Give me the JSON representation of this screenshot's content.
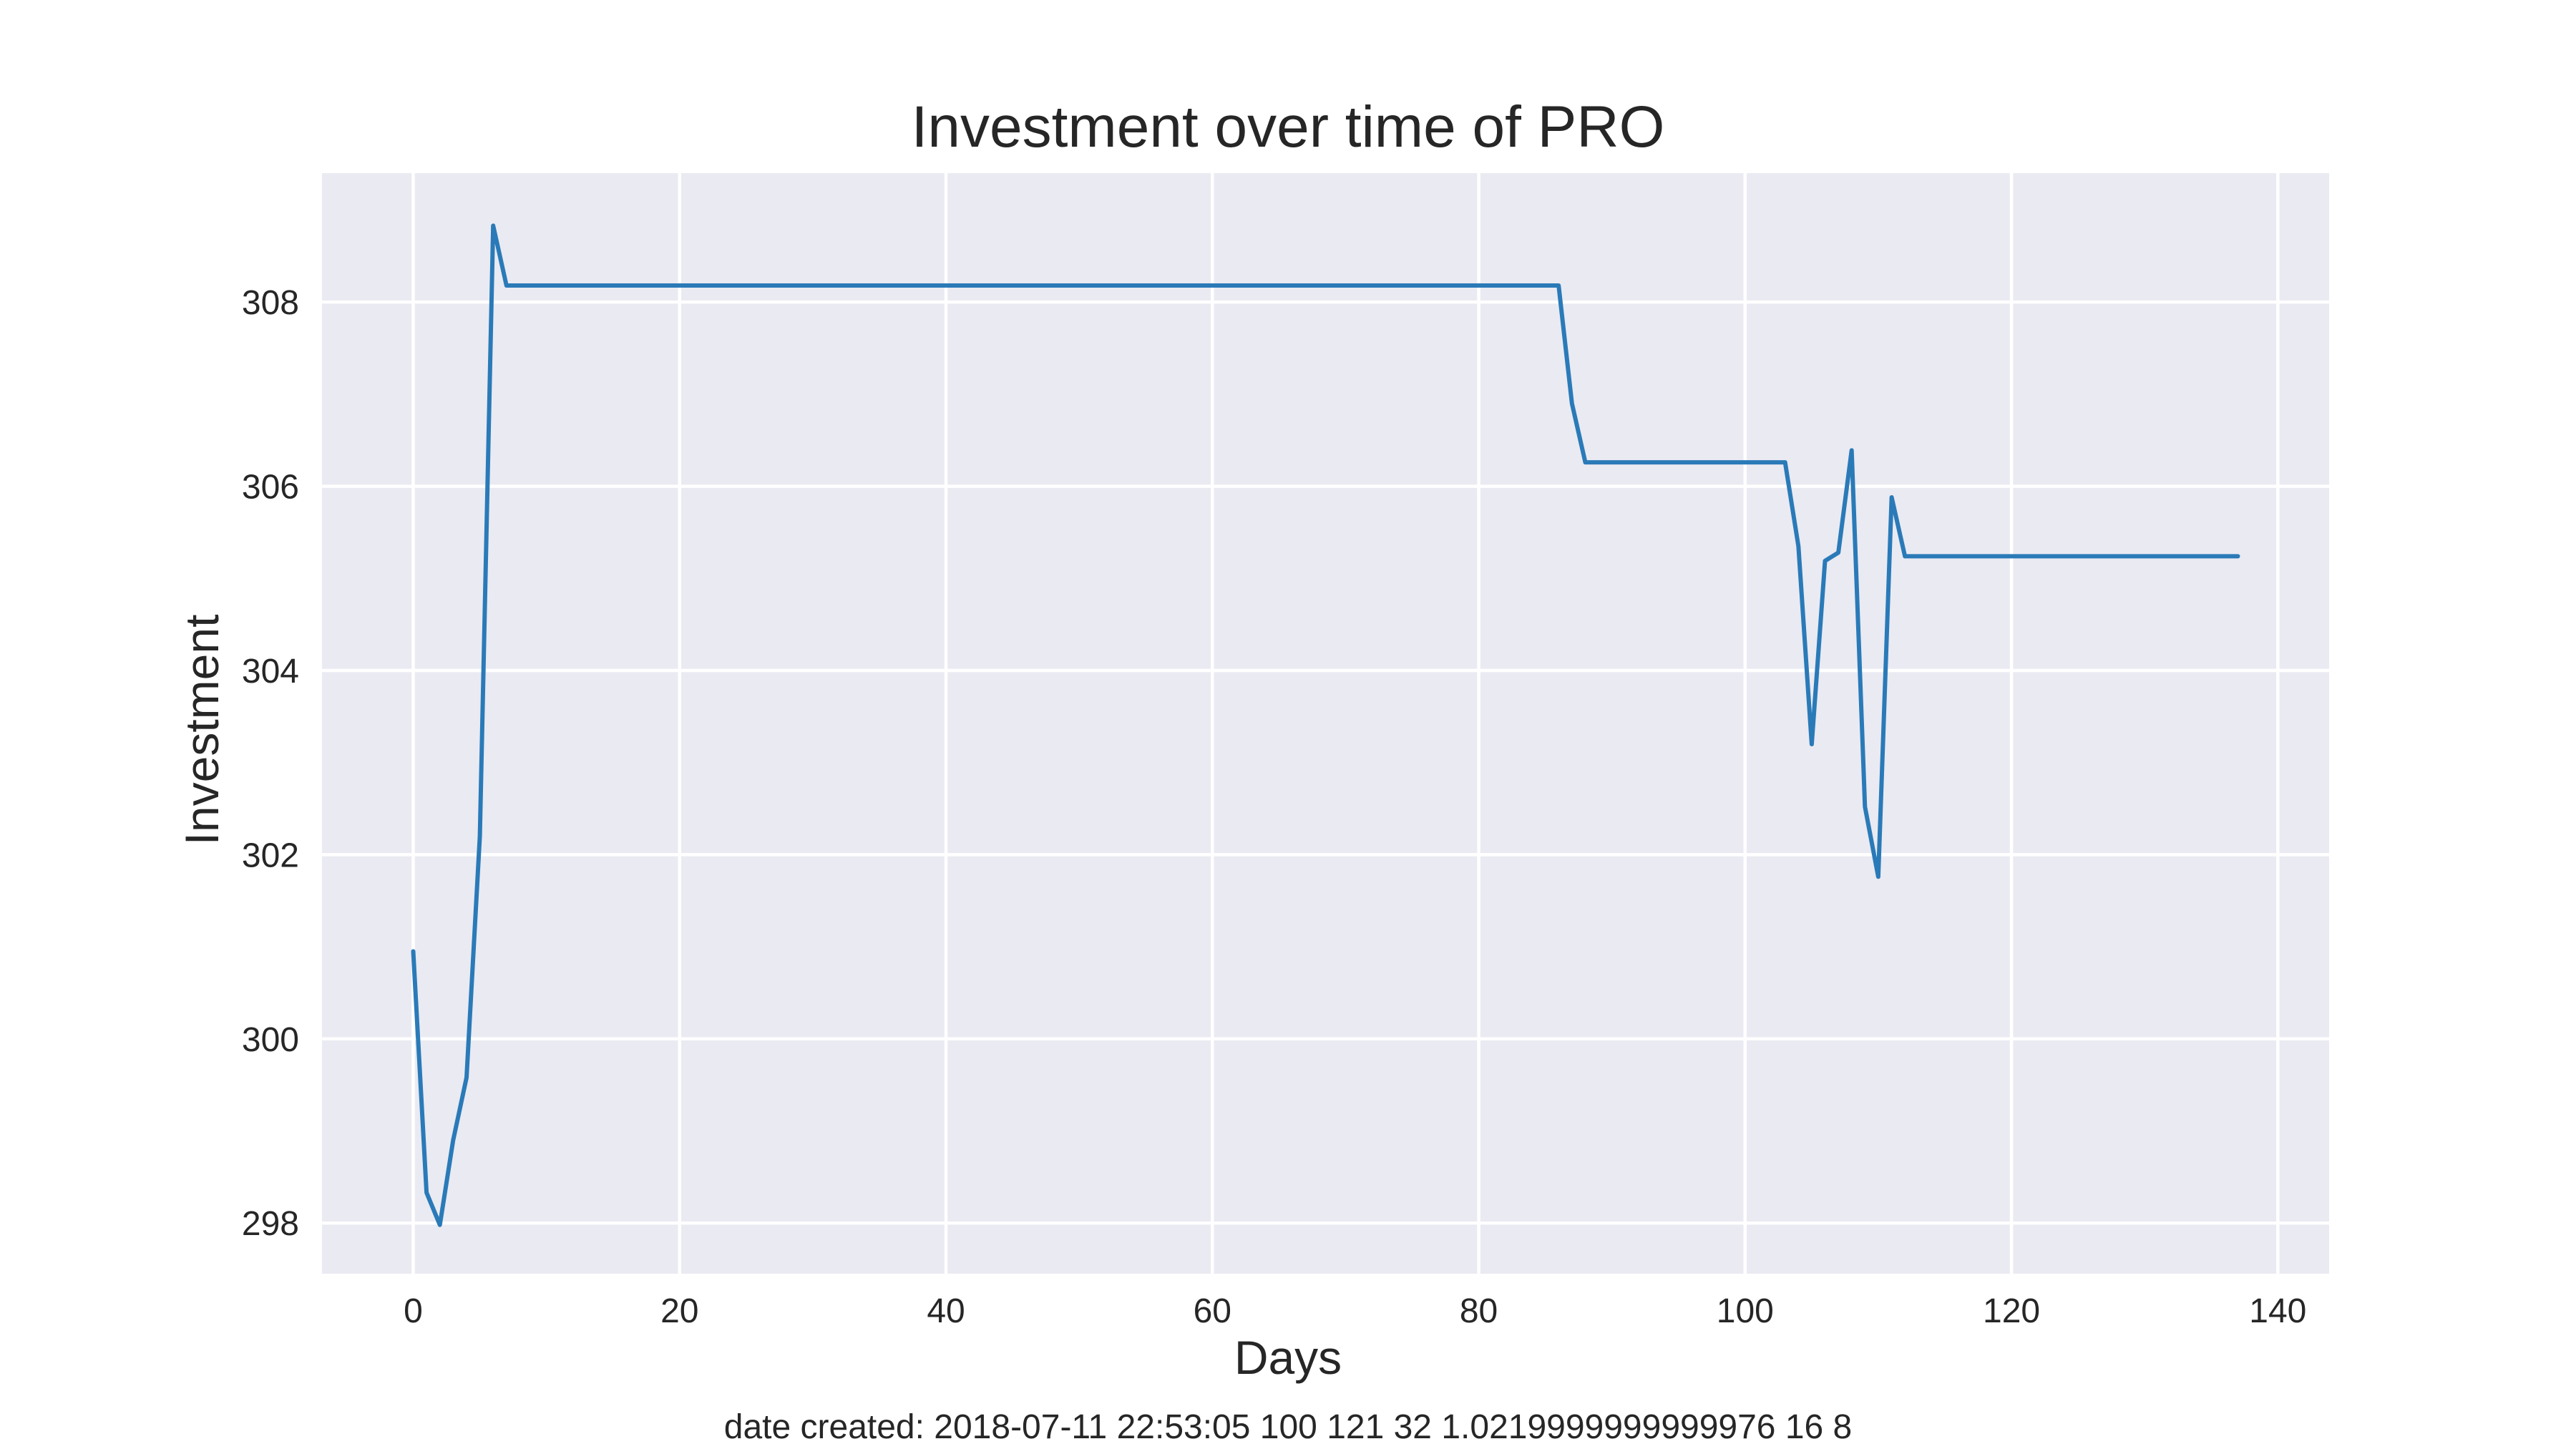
{
  "colors": {
    "plot_background": "#eaeaf2",
    "grid": "#ffffff",
    "line": "#2a7ab8",
    "text": "#262626"
  },
  "footer": "date created: 2018-07-11 22:53:05 100 121 32 1.0219999999999976 16 8",
  "chart_data": {
    "type": "line",
    "title": "Investment over time of PRO",
    "xlabel": "Days",
    "ylabel": "Investment",
    "xlim": [
      -6.85,
      143.85
    ],
    "ylim": [
      297.45,
      309.4
    ],
    "xticks": [
      0,
      20,
      40,
      60,
      80,
      100,
      120,
      140
    ],
    "yticks": [
      298,
      300,
      302,
      304,
      306,
      308
    ],
    "grid": true,
    "legend": "none",
    "series": [
      {
        "x": [
          0,
          1,
          2,
          3,
          4,
          5,
          6,
          7,
          20,
          40,
          60,
          80,
          86,
          87,
          88,
          100,
          103,
          104,
          105,
          106,
          107,
          108,
          109,
          110,
          111,
          112,
          120,
          137
        ],
        "y": [
          300.95,
          298.33,
          297.98,
          298.9,
          299.58,
          302.2,
          308.83,
          308.18,
          308.18,
          308.18,
          308.18,
          308.18,
          308.18,
          306.9,
          306.26,
          306.26,
          306.26,
          305.35,
          303.2,
          305.19,
          305.28,
          306.39,
          302.52,
          301.76,
          305.88,
          305.24,
          305.24,
          305.24
        ]
      }
    ]
  }
}
